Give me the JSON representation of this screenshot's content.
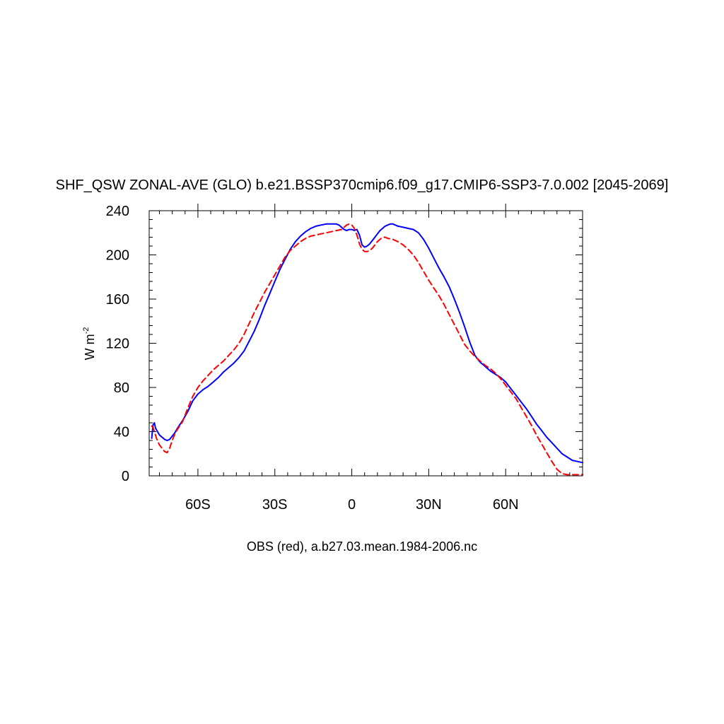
{
  "chart_data": {
    "type": "line",
    "title": "SHF_QSW ZONAL-AVE (GLO) b.e21.BSSP370cmip6.f09_g17.CMIP6-SSP3-7.0.002 [2045-2069]",
    "ylabel_base": "W m",
    "ylabel_exp": "-2",
    "footer": "OBS (red), a.b27.03.mean.1984-2006.nc",
    "xlim": [
      -79,
      90
    ],
    "ylim": [
      0,
      240
    ],
    "xticks": [
      {
        "value": -60,
        "label": "60S"
      },
      {
        "value": -30,
        "label": "30S"
      },
      {
        "value": 0,
        "label": "0"
      },
      {
        "value": 30,
        "label": "30N"
      },
      {
        "value": 60,
        "label": "60N"
      }
    ],
    "yticks": [
      0,
      40,
      80,
      120,
      160,
      200,
      240
    ],
    "series": [
      {
        "color": "#0000ff",
        "dash": "solid",
        "points": [
          [
            -78,
            34
          ],
          [
            -77.5,
            46
          ],
          [
            -77,
            48
          ],
          [
            -76.5,
            43
          ],
          [
            -75,
            37
          ],
          [
            -74,
            35
          ],
          [
            -73,
            33
          ],
          [
            -72,
            32
          ],
          [
            -71,
            33
          ],
          [
            -70,
            36
          ],
          [
            -69,
            39
          ],
          [
            -68,
            43
          ],
          [
            -66,
            50
          ],
          [
            -64,
            58
          ],
          [
            -62,
            68
          ],
          [
            -60,
            74
          ],
          [
            -58,
            78
          ],
          [
            -56,
            81
          ],
          [
            -54,
            85
          ],
          [
            -52,
            89
          ],
          [
            -50,
            94
          ],
          [
            -48,
            98
          ],
          [
            -46,
            102
          ],
          [
            -44,
            107
          ],
          [
            -42,
            113
          ],
          [
            -40,
            122
          ],
          [
            -38,
            131
          ],
          [
            -36,
            142
          ],
          [
            -34,
            154
          ],
          [
            -32,
            165
          ],
          [
            -30,
            176
          ],
          [
            -28,
            187
          ],
          [
            -26,
            196
          ],
          [
            -24,
            205
          ],
          [
            -22,
            212
          ],
          [
            -20,
            217
          ],
          [
            -18,
            221
          ],
          [
            -16,
            224
          ],
          [
            -14,
            226
          ],
          [
            -12,
            227
          ],
          [
            -10,
            228
          ],
          [
            -8,
            228
          ],
          [
            -6,
            228
          ],
          [
            -5,
            227
          ],
          [
            -4,
            225
          ],
          [
            -3,
            223
          ],
          [
            -2,
            222
          ],
          [
            -1,
            223
          ],
          [
            0,
            223
          ],
          [
            1,
            222
          ],
          [
            2,
            223
          ],
          [
            3,
            218
          ],
          [
            4,
            209
          ],
          [
            5,
            207
          ],
          [
            6,
            208
          ],
          [
            7,
            210
          ],
          [
            8,
            213
          ],
          [
            9,
            216
          ],
          [
            10,
            219
          ],
          [
            11,
            222
          ],
          [
            12,
            224
          ],
          [
            13,
            226
          ],
          [
            14,
            227
          ],
          [
            15,
            228
          ],
          [
            16,
            228
          ],
          [
            17,
            227
          ],
          [
            18,
            226
          ],
          [
            20,
            225
          ],
          [
            22,
            224
          ],
          [
            24,
            223
          ],
          [
            26,
            220
          ],
          [
            28,
            214
          ],
          [
            30,
            206
          ],
          [
            32,
            197
          ],
          [
            34,
            188
          ],
          [
            36,
            180
          ],
          [
            38,
            171
          ],
          [
            40,
            160
          ],
          [
            42,
            148
          ],
          [
            44,
            135
          ],
          [
            46,
            121
          ],
          [
            48,
            109
          ],
          [
            50,
            103
          ],
          [
            52,
            99
          ],
          [
            54,
            95
          ],
          [
            56,
            92
          ],
          [
            58,
            89
          ],
          [
            60,
            85
          ],
          [
            62,
            79
          ],
          [
            64,
            73
          ],
          [
            66,
            67
          ],
          [
            68,
            61
          ],
          [
            70,
            54
          ],
          [
            72,
            47
          ],
          [
            74,
            41
          ],
          [
            76,
            35
          ],
          [
            78,
            30
          ],
          [
            80,
            25
          ],
          [
            82,
            20
          ],
          [
            84,
            17
          ],
          [
            86,
            14
          ],
          [
            88,
            13
          ],
          [
            90,
            12
          ]
        ]
      },
      {
        "color": "#ff0000",
        "dash": "dashed",
        "points": [
          [
            -78,
            45
          ],
          [
            -77.5,
            44
          ],
          [
            -77,
            40
          ],
          [
            -76,
            33
          ],
          [
            -75,
            28
          ],
          [
            -74,
            25
          ],
          [
            -73,
            22
          ],
          [
            -72,
            21
          ],
          [
            -71,
            25
          ],
          [
            -70,
            32
          ],
          [
            -69,
            38
          ],
          [
            -68,
            42
          ],
          [
            -66,
            49
          ],
          [
            -64,
            61
          ],
          [
            -62,
            72
          ],
          [
            -60,
            80
          ],
          [
            -58,
            86
          ],
          [
            -56,
            91
          ],
          [
            -54,
            96
          ],
          [
            -52,
            100
          ],
          [
            -50,
            104
          ],
          [
            -48,
            109
          ],
          [
            -46,
            114
          ],
          [
            -44,
            120
          ],
          [
            -42,
            128
          ],
          [
            -40,
            138
          ],
          [
            -38,
            148
          ],
          [
            -36,
            157
          ],
          [
            -34,
            166
          ],
          [
            -32,
            174
          ],
          [
            -30,
            182
          ],
          [
            -28,
            190
          ],
          [
            -26,
            198
          ],
          [
            -24,
            204
          ],
          [
            -22,
            208
          ],
          [
            -20,
            212
          ],
          [
            -18,
            215
          ],
          [
            -16,
            217
          ],
          [
            -14,
            218
          ],
          [
            -12,
            219
          ],
          [
            -10,
            220
          ],
          [
            -8,
            221
          ],
          [
            -6,
            222
          ],
          [
            -4,
            223
          ],
          [
            -3,
            225
          ],
          [
            -2,
            227
          ],
          [
            -1,
            228
          ],
          [
            0,
            227
          ],
          [
            1,
            224
          ],
          [
            2,
            218
          ],
          [
            3,
            210
          ],
          [
            4,
            205
          ],
          [
            5,
            203
          ],
          [
            6,
            203
          ],
          [
            7,
            204
          ],
          [
            8,
            206
          ],
          [
            9,
            209
          ],
          [
            10,
            212
          ],
          [
            11,
            214
          ],
          [
            12,
            216
          ],
          [
            13,
            216
          ],
          [
            14,
            215
          ],
          [
            16,
            214
          ],
          [
            18,
            212
          ],
          [
            20,
            209
          ],
          [
            22,
            205
          ],
          [
            24,
            200
          ],
          [
            26,
            193
          ],
          [
            28,
            185
          ],
          [
            30,
            177
          ],
          [
            32,
            170
          ],
          [
            34,
            163
          ],
          [
            36,
            155
          ],
          [
            38,
            146
          ],
          [
            40,
            137
          ],
          [
            42,
            128
          ],
          [
            44,
            119
          ],
          [
            46,
            113
          ],
          [
            48,
            108
          ],
          [
            50,
            104
          ],
          [
            52,
            100
          ],
          [
            54,
            97
          ],
          [
            56,
            93
          ],
          [
            58,
            88
          ],
          [
            60,
            82
          ],
          [
            62,
            76
          ],
          [
            64,
            70
          ],
          [
            66,
            62
          ],
          [
            68,
            54
          ],
          [
            70,
            46
          ],
          [
            72,
            37
          ],
          [
            74,
            29
          ],
          [
            76,
            21
          ],
          [
            78,
            13
          ],
          [
            80,
            6
          ],
          [
            82,
            2
          ],
          [
            84,
            1
          ],
          [
            86,
            1
          ],
          [
            88,
            1
          ],
          [
            90,
            1
          ]
        ]
      }
    ]
  }
}
